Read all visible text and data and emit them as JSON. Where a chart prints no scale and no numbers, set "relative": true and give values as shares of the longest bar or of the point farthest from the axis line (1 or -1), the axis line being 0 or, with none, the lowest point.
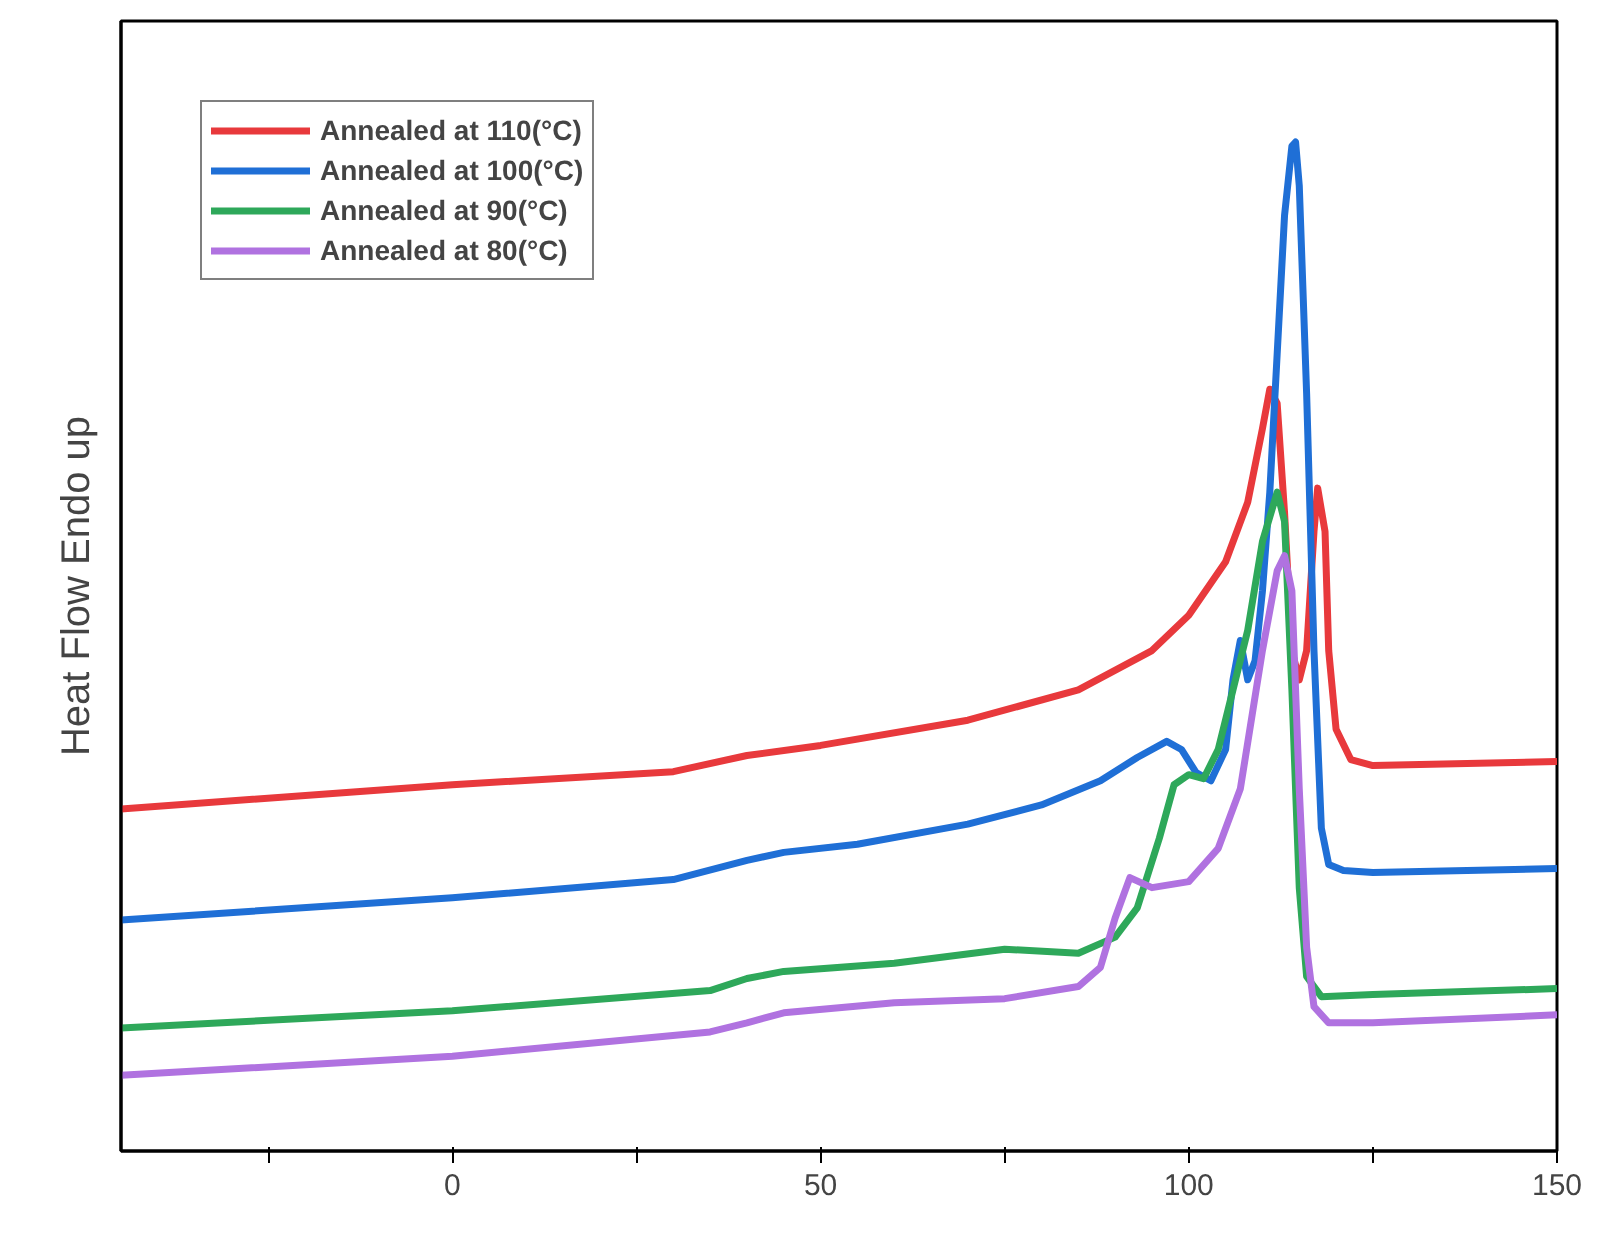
{
  "chart_data": {
    "type": "line",
    "relative": true,
    "ylabel": "Heat Flow Endo up",
    "xlim": [
      -45,
      150
    ],
    "xticks": [
      {
        "value": -25,
        "label": null
      },
      0,
      {
        "value": 25,
        "label": null
      },
      50,
      {
        "value": 75,
        "label": null
      },
      100,
      {
        "value": 125,
        "label": null
      },
      150
    ],
    "legend": "top left",
    "grid": false,
    "marker": "none",
    "line_style": "solid",
    "tick_labels": "x",
    "series": [
      {
        "name": "Annealed at 110(°C)",
        "color": "#e8393c",
        "x": [
          -45,
          0,
          30,
          40,
          50,
          70,
          85,
          95,
          100,
          105,
          108,
          110,
          111,
          112,
          113,
          114,
          115,
          116,
          117,
          117.5,
          118.5,
          119,
          120,
          122,
          125,
          150
        ],
        "values": [
          0.339,
          0.363,
          0.376,
          0.392,
          0.402,
          0.427,
          0.457,
          0.496,
          0.531,
          0.584,
          0.643,
          0.716,
          0.755,
          0.741,
          0.633,
          0.496,
          0.467,
          0.496,
          0.614,
          0.657,
          0.614,
          0.496,
          0.418,
          0.388,
          0.382,
          0.386
        ]
      },
      {
        "name": "Annealed at 100(°C)",
        "color": "#1f6fd6",
        "x": [
          -45,
          0,
          30,
          40,
          45,
          55,
          70,
          80,
          88,
          93,
          97,
          99,
          101,
          103,
          105,
          106,
          107,
          108,
          109,
          110,
          111,
          112,
          113,
          114,
          114.5,
          115,
          116,
          117,
          118,
          119,
          121,
          125,
          150
        ],
        "values": [
          0.229,
          0.251,
          0.269,
          0.288,
          0.296,
          0.304,
          0.324,
          0.343,
          0.367,
          0.39,
          0.406,
          0.398,
          0.375,
          0.367,
          0.398,
          0.467,
          0.506,
          0.467,
          0.486,
          0.555,
          0.653,
          0.79,
          0.927,
          0.996,
          1.0,
          0.957,
          0.751,
          0.496,
          0.32,
          0.284,
          0.278,
          0.276,
          0.28
        ]
      },
      {
        "name": "Annealed at 90(°C)",
        "color": "#2ea85a",
        "x": [
          -45,
          0,
          35,
          40,
          45,
          60,
          75,
          85,
          90,
          93,
          96,
          98,
          100,
          102,
          104,
          106,
          108,
          110,
          112,
          113,
          114,
          115,
          116,
          118,
          125,
          150
        ],
        "values": [
          0.122,
          0.139,
          0.159,
          0.171,
          0.178,
          0.186,
          0.2,
          0.196,
          0.212,
          0.241,
          0.31,
          0.363,
          0.373,
          0.369,
          0.398,
          0.457,
          0.516,
          0.604,
          0.653,
          0.624,
          0.457,
          0.261,
          0.173,
          0.153,
          0.155,
          0.161
        ]
      },
      {
        "name": "Annealed at 80(°C)",
        "color": "#b072e0",
        "x": [
          -45,
          0,
          35,
          40,
          45,
          60,
          75,
          85,
          88,
          90,
          92,
          95,
          100,
          104,
          107,
          110,
          112,
          113,
          114,
          115,
          116,
          117,
          119,
          125,
          150
        ],
        "values": [
          0.075,
          0.094,
          0.118,
          0.127,
          0.137,
          0.147,
          0.151,
          0.163,
          0.182,
          0.231,
          0.271,
          0.261,
          0.267,
          0.3,
          0.359,
          0.496,
          0.575,
          0.59,
          0.555,
          0.359,
          0.202,
          0.143,
          0.127,
          0.127,
          0.135
        ]
      }
    ]
  }
}
